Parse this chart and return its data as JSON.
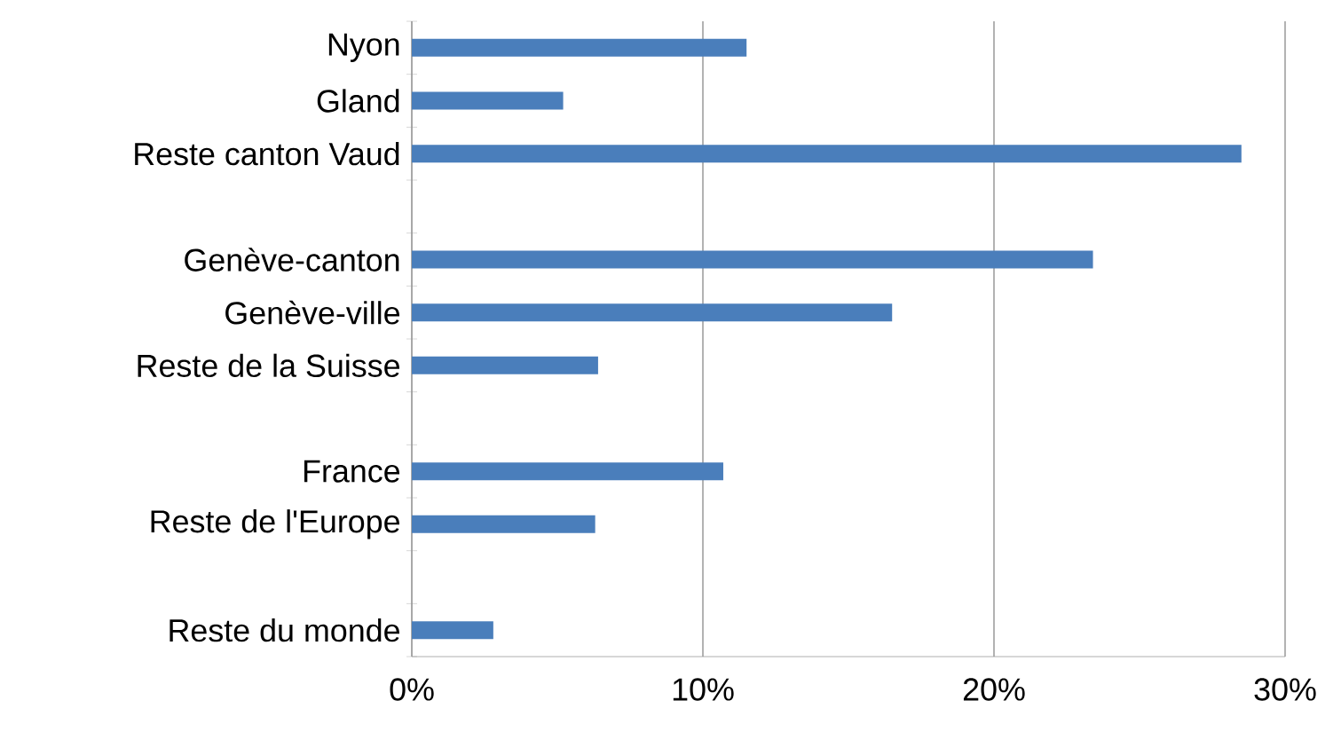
{
  "chart_data": {
    "type": "bar",
    "orientation": "horizontal",
    "categories": [
      "Nyon",
      "Gland",
      "Reste canton Vaud",
      null,
      "Genève-canton",
      "Genève-ville",
      "Reste de la Suisse",
      null,
      "France",
      "Reste de l'Europe",
      null,
      "Reste du monde"
    ],
    "values": [
      11.5,
      5.2,
      28.5,
      null,
      23.4,
      16.5,
      6.4,
      null,
      10.7,
      6.3,
      null,
      2.8
    ],
    "color": "#4a7ebb",
    "xlim": [
      0,
      30
    ],
    "xticks": [
      {
        "value": 0,
        "label": "0%"
      },
      {
        "value": 10,
        "label": "10%"
      },
      {
        "value": 20,
        "label": "20%"
      },
      {
        "value": 30,
        "label": "30%"
      }
    ],
    "grid": "x"
  }
}
